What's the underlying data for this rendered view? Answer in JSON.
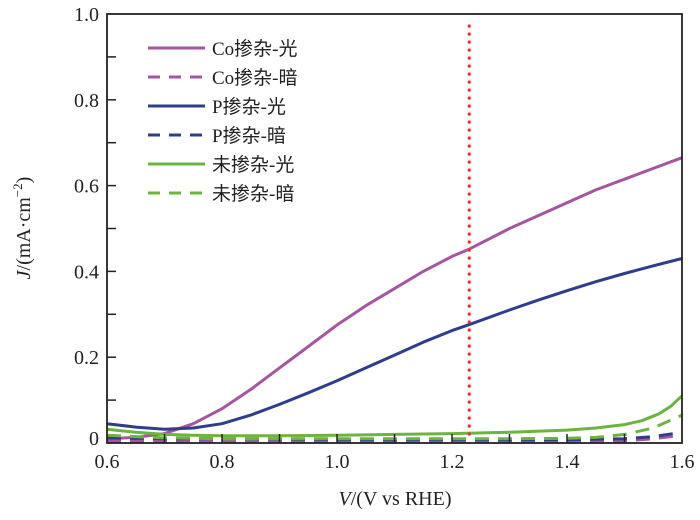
{
  "chart_data": {
    "type": "line",
    "title": "",
    "xlabel_italic": "V",
    "xlabel_rest": "/(V vs RHE)",
    "ylabel_italic": "J",
    "ylabel_rest": "/(mA·cm",
    "ylabel_sup": "−2",
    "ylabel_close": ")",
    "xlim": [
      0.6,
      1.6
    ],
    "ylim": [
      0,
      1.0
    ],
    "x_ticks": [
      0.6,
      0.8,
      1.0,
      1.2,
      1.4,
      1.6
    ],
    "x_tick_labels": [
      "0.6",
      "0.8",
      "1.0",
      "1.2",
      "1.4",
      "1.6"
    ],
    "x_minor_ticks": [
      0.7,
      0.9,
      1.1,
      1.3,
      1.5
    ],
    "y_ticks": [
      0,
      0.2,
      0.4,
      0.6,
      0.8,
      1.0
    ],
    "y_tick_labels": [
      "0",
      "0.2",
      "0.4",
      "0.6",
      "0.8",
      "1.0"
    ],
    "y_minor_ticks": [
      0.1,
      0.3,
      0.5,
      0.7,
      0.9
    ],
    "grid": false,
    "legend_position": "top-left",
    "reference_line": {
      "x": 1.23,
      "color": "#e8302e",
      "style": "dotted"
    },
    "series": [
      {
        "name": "Co掺杂-光",
        "color": "#a4569e",
        "dash": "solid",
        "x": [
          0.6,
          0.65,
          0.7,
          0.75,
          0.8,
          0.85,
          0.9,
          0.95,
          1.0,
          1.05,
          1.1,
          1.15,
          1.2,
          1.23,
          1.3,
          1.35,
          1.4,
          1.45,
          1.5,
          1.55,
          1.6
        ],
        "y": [
          0.01,
          0.013,
          0.022,
          0.045,
          0.08,
          0.125,
          0.175,
          0.225,
          0.275,
          0.32,
          0.36,
          0.4,
          0.435,
          0.452,
          0.5,
          0.53,
          0.56,
          0.59,
          0.615,
          0.64,
          0.665
        ]
      },
      {
        "name": "Co掺杂-暗",
        "color": "#a4569e",
        "dash": "dashed",
        "x": [
          0.6,
          0.7,
          0.8,
          0.9,
          1.0,
          1.1,
          1.2,
          1.3,
          1.4,
          1.5,
          1.55,
          1.6
        ],
        "y": [
          0.005,
          0.004,
          0.003,
          0.003,
          0.003,
          0.003,
          0.003,
          0.003,
          0.003,
          0.005,
          0.01,
          0.018
        ]
      },
      {
        "name": "P掺杂-光",
        "color": "#2f3d8a",
        "dash": "solid",
        "x": [
          0.6,
          0.65,
          0.7,
          0.75,
          0.8,
          0.85,
          0.9,
          0.95,
          1.0,
          1.05,
          1.1,
          1.15,
          1.2,
          1.23,
          1.3,
          1.35,
          1.4,
          1.45,
          1.5,
          1.55,
          1.6
        ],
        "y": [
          0.045,
          0.037,
          0.032,
          0.035,
          0.045,
          0.065,
          0.09,
          0.117,
          0.145,
          0.175,
          0.205,
          0.235,
          0.262,
          0.276,
          0.31,
          0.333,
          0.355,
          0.376,
          0.395,
          0.413,
          0.43
        ]
      },
      {
        "name": "P掺杂-暗",
        "color": "#2f3d8a",
        "dash": "dashed",
        "x": [
          0.6,
          0.7,
          0.8,
          0.9,
          1.0,
          1.1,
          1.2,
          1.3,
          1.4,
          1.5,
          1.55,
          1.6
        ],
        "y": [
          0.012,
          0.01,
          0.01,
          0.009,
          0.008,
          0.008,
          0.008,
          0.008,
          0.008,
          0.01,
          0.015,
          0.025
        ]
      },
      {
        "name": "未掺杂-光",
        "color": "#6cb33f",
        "dash": "solid",
        "x": [
          0.6,
          0.65,
          0.7,
          0.75,
          0.8,
          0.9,
          1.0,
          1.1,
          1.2,
          1.3,
          1.4,
          1.45,
          1.5,
          1.53,
          1.56,
          1.58,
          1.6
        ],
        "y": [
          0.032,
          0.025,
          0.02,
          0.018,
          0.017,
          0.017,
          0.018,
          0.02,
          0.022,
          0.025,
          0.03,
          0.035,
          0.043,
          0.052,
          0.068,
          0.085,
          0.11
        ]
      },
      {
        "name": "未掺杂-暗",
        "color": "#6cb33f",
        "dash": "dashed",
        "x": [
          0.6,
          0.7,
          0.8,
          0.9,
          1.0,
          1.1,
          1.2,
          1.3,
          1.4,
          1.45,
          1.5,
          1.55,
          1.6
        ],
        "y": [
          0.018,
          0.012,
          0.01,
          0.01,
          0.01,
          0.01,
          0.01,
          0.01,
          0.011,
          0.013,
          0.02,
          0.035,
          0.065
        ]
      }
    ]
  }
}
